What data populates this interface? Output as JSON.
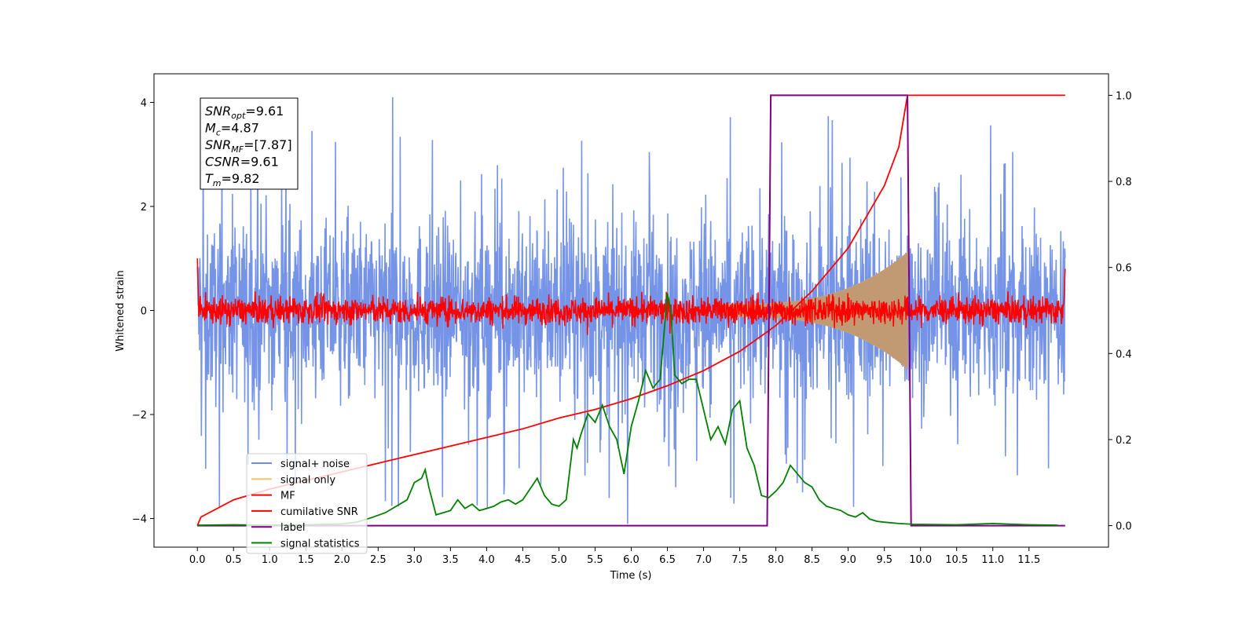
{
  "chart_data": {
    "type": "line",
    "title": "",
    "xlabel": "Time (s)",
    "ylabel": "Whitened strain",
    "xlim": [
      -0.6,
      12.6
    ],
    "ylim": [
      -4.55,
      4.55
    ],
    "y2lim": [
      -0.05,
      1.05
    ],
    "x_ticks": [
      0.0,
      0.5,
      1.0,
      1.5,
      2.0,
      2.5,
      3.0,
      3.5,
      4.0,
      4.5,
      5.0,
      5.5,
      6.0,
      6.5,
      7.0,
      7.5,
      8.0,
      8.5,
      9.0,
      9.5,
      10.0,
      10.5,
      11.0,
      11.5
    ],
    "x_tick_labels": [
      "0.0",
      "0.5",
      "1.0",
      "1.5",
      "2.0",
      "2.5",
      "3.0",
      "3.5",
      "4.0",
      "4.5",
      "5.0",
      "5.5",
      "6.0",
      "6.5",
      "7.0",
      "7.5",
      "8.0",
      "8.5",
      "9.0",
      "9.5",
      "10.0",
      "10.5",
      "11.0",
      "11.5"
    ],
    "y_ticks": [
      -4,
      -2,
      0,
      2,
      4
    ],
    "y_tick_labels": [
      "−4",
      "−2",
      "0",
      "2",
      "4"
    ],
    "y2_ticks": [
      0.0,
      0.2,
      0.4,
      0.6,
      0.8,
      1.0
    ],
    "y2_tick_labels": [
      "0.0",
      "0.2",
      "0.4",
      "0.6",
      "0.8",
      "1.0"
    ],
    "legend_placement": "lower-left",
    "series": [
      {
        "name": "signal+ noise",
        "color": "#6f8ee6",
        "axis": "left",
        "style": "noise",
        "x_range": [
          0.0,
          12.0
        ],
        "amplitude": 1.6,
        "peak_max": 4.1,
        "peak_min": -4.1
      },
      {
        "name": "signal only",
        "color": "#ffc065",
        "axis": "left",
        "style": "chirp",
        "x_range": [
          0.0,
          9.82
        ],
        "envelope_max": 1.0
      },
      {
        "name": "MF",
        "color": "#ff0000",
        "axis": "left",
        "style": "noise",
        "x_range": [
          0.0,
          12.0
        ],
        "amplitude": 0.22,
        "edge_value": 1.0
      },
      {
        "name": "cumilative SNR",
        "color": "#ff0000",
        "axis": "right",
        "x": [
          0.0,
          0.05,
          0.5,
          1.0,
          1.5,
          2.0,
          2.5,
          3.0,
          3.5,
          4.0,
          4.5,
          5.0,
          5.5,
          6.0,
          6.5,
          7.0,
          7.5,
          8.0,
          8.5,
          9.0,
          9.5,
          9.7,
          9.82,
          10.0,
          12.0
        ],
        "y": [
          0.0,
          0.02,
          0.06,
          0.085,
          0.105,
          0.125,
          0.145,
          0.165,
          0.185,
          0.205,
          0.225,
          0.25,
          0.27,
          0.295,
          0.325,
          0.36,
          0.405,
          0.465,
          0.545,
          0.645,
          0.79,
          0.88,
          1.0,
          1.0,
          1.0
        ]
      },
      {
        "name": "label",
        "color": "#800080",
        "axis": "right",
        "x": [
          0.0,
          7.88,
          7.93,
          9.82,
          9.87,
          12.0
        ],
        "y": [
          0.0,
          0.0,
          1.0,
          1.0,
          0.0,
          0.0
        ]
      },
      {
        "name": "signal statistics",
        "color": "#008000",
        "axis": "right",
        "x": [
          0.0,
          0.5,
          1.0,
          1.5,
          2.0,
          2.2,
          2.4,
          2.6,
          2.8,
          2.9,
          3.0,
          3.1,
          3.15,
          3.2,
          3.3,
          3.4,
          3.5,
          3.6,
          3.7,
          3.8,
          3.9,
          4.0,
          4.1,
          4.2,
          4.3,
          4.4,
          4.5,
          4.6,
          4.7,
          4.8,
          4.9,
          5.0,
          5.1,
          5.2,
          5.25,
          5.3,
          5.4,
          5.5,
          5.6,
          5.7,
          5.8,
          5.9,
          6.0,
          6.1,
          6.2,
          6.3,
          6.4,
          6.5,
          6.55,
          6.6,
          6.7,
          6.8,
          6.9,
          7.0,
          7.1,
          7.2,
          7.3,
          7.4,
          7.5,
          7.6,
          7.7,
          7.8,
          7.9,
          8.0,
          8.1,
          8.2,
          8.3,
          8.4,
          8.5,
          8.6,
          8.7,
          8.8,
          8.9,
          9.0,
          9.1,
          9.2,
          9.3,
          9.4,
          9.5,
          9.7,
          9.9,
          10.5,
          11.0,
          11.5,
          11.9
        ],
        "y": [
          0.001,
          0.002,
          0.001,
          0.002,
          0.004,
          0.008,
          0.018,
          0.03,
          0.05,
          0.06,
          0.1,
          0.11,
          0.13,
          0.09,
          0.025,
          0.03,
          0.035,
          0.06,
          0.04,
          0.05,
          0.035,
          0.04,
          0.045,
          0.055,
          0.06,
          0.05,
          0.06,
          0.085,
          0.11,
          0.07,
          0.05,
          0.045,
          0.06,
          0.2,
          0.18,
          0.21,
          0.26,
          0.24,
          0.28,
          0.23,
          0.2,
          0.12,
          0.23,
          0.29,
          0.36,
          0.32,
          0.34,
          0.54,
          0.5,
          0.35,
          0.33,
          0.34,
          0.34,
          0.27,
          0.2,
          0.23,
          0.19,
          0.27,
          0.29,
          0.18,
          0.14,
          0.07,
          0.065,
          0.08,
          0.1,
          0.14,
          0.12,
          0.1,
          0.09,
          0.06,
          0.045,
          0.04,
          0.035,
          0.025,
          0.02,
          0.03,
          0.015,
          0.01,
          0.008,
          0.005,
          0.003,
          0.002,
          0.005,
          0.002,
          0.001
        ]
      }
    ],
    "annotations": [
      {
        "base": "SNR",
        "sub": "opt",
        "value": "=9.61"
      },
      {
        "base": "M",
        "sub": "c",
        "value": "=4.87"
      },
      {
        "base": "SNR",
        "sub": "MF",
        "value": "=[7.87]"
      },
      {
        "base": "CSNR",
        "sub": "",
        "value": "=9.61"
      },
      {
        "base": "T",
        "sub": "m",
        "value": "=9.82"
      }
    ]
  }
}
